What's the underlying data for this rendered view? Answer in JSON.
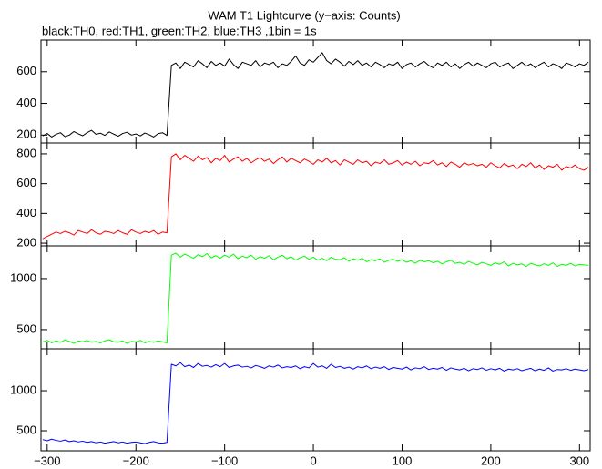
{
  "chart_data": [
    {
      "type": "line",
      "title": "WAM T1 Lightcurve (y−axis: Counts)",
      "subtitle": "black:TH0, red:TH1, green:TH2, blue:TH3 ,1bin = 1s",
      "color": "#000000",
      "x": [
        -305,
        -300,
        -295,
        -290,
        -285,
        -280,
        -275,
        -270,
        -265,
        -260,
        -255,
        -250,
        -245,
        -240,
        -235,
        -230,
        -225,
        -220,
        -215,
        -210,
        -205,
        -200,
        -195,
        -190,
        -185,
        -180,
        -175,
        -170,
        -165,
        -160,
        -155,
        -150,
        -145,
        -140,
        -135,
        -130,
        -125,
        -120,
        -115,
        -110,
        -105,
        -100,
        -95,
        -90,
        -85,
        -80,
        -75,
        -70,
        -65,
        -60,
        -55,
        -50,
        -45,
        -40,
        -35,
        -30,
        -25,
        -20,
        -15,
        -10,
        -5,
        0,
        5,
        10,
        15,
        20,
        25,
        30,
        35,
        40,
        45,
        50,
        55,
        60,
        65,
        70,
        75,
        80,
        85,
        90,
        95,
        100,
        105,
        110,
        115,
        120,
        125,
        130,
        135,
        140,
        145,
        150,
        155,
        160,
        165,
        170,
        175,
        180,
        185,
        190,
        195,
        200,
        205,
        210,
        215,
        220,
        225,
        230,
        235,
        240,
        245,
        250,
        255,
        260,
        265,
        270,
        275,
        280,
        285,
        290,
        295,
        300,
        305,
        310
      ],
      "values": [
        195,
        210,
        188,
        205,
        215,
        190,
        200,
        222,
        208,
        196,
        215,
        230,
        205,
        212,
        198,
        220,
        206,
        193,
        210,
        218,
        200,
        207,
        195,
        213,
        202,
        188,
        209,
        215,
        198,
        640,
        655,
        620,
        660,
        645,
        630,
        670,
        650,
        625,
        665,
        640,
        655,
        635,
        680,
        645,
        620,
        660,
        650,
        640,
        670,
        630,
        655,
        645,
        660,
        625,
        650,
        640,
        665,
        700,
        655,
        640,
        675,
        660,
        690,
        720,
        670,
        650,
        680,
        660,
        635,
        665,
        645,
        670,
        640,
        655,
        630,
        660,
        645,
        625,
        650,
        640,
        660,
        620,
        645,
        655,
        630,
        650,
        665,
        640,
        625,
        655,
        640,
        660,
        630,
        650,
        620,
        645,
        660,
        635,
        655,
        640,
        625,
        650,
        660,
        630,
        645,
        655,
        620,
        640,
        660,
        635,
        650,
        625,
        645,
        660,
        630,
        650,
        640,
        620,
        655,
        645,
        630,
        650,
        640,
        660
      ],
      "xlim": [
        -307,
        312
      ],
      "ylim": [
        150,
        800
      ],
      "yticks": [
        200,
        400,
        600
      ],
      "xticks": [
        {
          "value": -300,
          "label": "−300"
        },
        {
          "value": -200,
          "label": "−200"
        },
        {
          "value": -100,
          "label": "−100"
        },
        0,
        100,
        200,
        300
      ]
    },
    {
      "type": "line",
      "color": "#ff0000",
      "x": [
        -305,
        -300,
        -295,
        -290,
        -285,
        -280,
        -275,
        -270,
        -265,
        -260,
        -255,
        -250,
        -245,
        -240,
        -235,
        -230,
        -225,
        -220,
        -215,
        -210,
        -205,
        -200,
        -195,
        -190,
        -185,
        -180,
        -175,
        -170,
        -165,
        -160,
        -155,
        -150,
        -145,
        -140,
        -135,
        -130,
        -125,
        -120,
        -115,
        -110,
        -105,
        -100,
        -95,
        -90,
        -85,
        -80,
        -75,
        -70,
        -65,
        -60,
        -55,
        -50,
        -45,
        -40,
        -35,
        -30,
        -25,
        -20,
        -15,
        -10,
        -5,
        0,
        5,
        10,
        15,
        20,
        25,
        30,
        35,
        40,
        45,
        50,
        55,
        60,
        65,
        70,
        75,
        80,
        85,
        90,
        95,
        100,
        105,
        110,
        115,
        120,
        125,
        130,
        135,
        140,
        145,
        150,
        155,
        160,
        165,
        170,
        175,
        180,
        185,
        190,
        195,
        200,
        205,
        210,
        215,
        220,
        225,
        230,
        235,
        240,
        245,
        250,
        255,
        260,
        265,
        270,
        275,
        280,
        285,
        290,
        295,
        300,
        305,
        310
      ],
      "values": [
        230,
        245,
        260,
        275,
        265,
        280,
        270,
        255,
        285,
        275,
        265,
        290,
        270,
        260,
        280,
        275,
        265,
        285,
        270,
        260,
        290,
        275,
        265,
        280,
        270,
        285,
        260,
        275,
        270,
        780,
        800,
        760,
        790,
        770,
        750,
        785,
        760,
        775,
        740,
        770,
        755,
        790,
        745,
        765,
        780,
        750,
        770,
        740,
        760,
        775,
        750,
        765,
        735,
        760,
        780,
        745,
        770,
        755,
        740,
        765,
        750,
        730,
        760,
        745,
        770,
        740,
        755,
        725,
        760,
        745,
        730,
        760,
        740,
        750,
        720,
        745,
        735,
        760,
        730,
        740,
        755,
        725,
        745,
        730,
        750,
        720,
        740,
        735,
        755,
        725,
        740,
        715,
        745,
        730,
        710,
        740,
        725,
        735,
        720,
        730,
        710,
        740,
        720,
        705,
        735,
        715,
        725,
        700,
        730,
        715,
        740,
        705,
        725,
        695,
        720,
        710,
        730,
        690,
        715,
        705,
        725,
        700,
        690,
        710
      ],
      "xlim": [
        -307,
        312
      ],
      "ylim": [
        182,
        873
      ],
      "yticks": [
        200,
        400,
        600,
        800
      ],
      "xticks": [
        {
          "value": -300,
          "label": "−300"
        },
        {
          "value": -200,
          "label": "−200"
        },
        {
          "value": -100,
          "label": "−100"
        },
        0,
        100,
        200,
        300
      ]
    },
    {
      "type": "line",
      "color": "#00ff00",
      "x": [
        -305,
        -300,
        -295,
        -290,
        -285,
        -280,
        -275,
        -270,
        -265,
        -260,
        -255,
        -250,
        -245,
        -240,
        -235,
        -230,
        -225,
        -220,
        -215,
        -210,
        -205,
        -200,
        -195,
        -190,
        -185,
        -180,
        -175,
        -170,
        -165,
        -160,
        -155,
        -150,
        -145,
        -140,
        -135,
        -130,
        -125,
        -120,
        -115,
        -110,
        -105,
        -100,
        -95,
        -90,
        -85,
        -80,
        -75,
        -70,
        -65,
        -60,
        -55,
        -50,
        -45,
        -40,
        -35,
        -30,
        -25,
        -20,
        -15,
        -10,
        -5,
        0,
        5,
        10,
        15,
        20,
        25,
        30,
        35,
        40,
        45,
        50,
        55,
        60,
        65,
        70,
        75,
        80,
        85,
        90,
        95,
        100,
        105,
        110,
        115,
        120,
        125,
        130,
        135,
        140,
        145,
        150,
        155,
        160,
        165,
        170,
        175,
        180,
        185,
        190,
        195,
        200,
        205,
        210,
        215,
        220,
        225,
        230,
        235,
        240,
        245,
        250,
        255,
        260,
        265,
        270,
        275,
        280,
        285,
        290,
        295,
        300,
        305,
        310
      ],
      "values": [
        380,
        395,
        370,
        390,
        375,
        400,
        385,
        365,
        390,
        380,
        395,
        375,
        385,
        370,
        390,
        400,
        380,
        375,
        390,
        365,
        385,
        380,
        395,
        370,
        385,
        375,
        390,
        380,
        370,
        1230,
        1250,
        1210,
        1240,
        1220,
        1200,
        1235,
        1215,
        1245,
        1205,
        1225,
        1200,
        1230,
        1210,
        1240,
        1195,
        1220,
        1205,
        1230,
        1190,
        1215,
        1200,
        1225,
        1185,
        1210,
        1230,
        1195,
        1215,
        1180,
        1205,
        1220,
        1190,
        1210,
        1180,
        1200,
        1175,
        1210,
        1190,
        1185,
        1205,
        1170,
        1195,
        1180,
        1200,
        1165,
        1185,
        1175,
        1195,
        1160,
        1180,
        1190,
        1170,
        1185,
        1160,
        1175,
        1150,
        1180,
        1165,
        1175,
        1155,
        1170,
        1145,
        1165,
        1180,
        1150,
        1160,
        1140,
        1170,
        1150,
        1135,
        1160,
        1145,
        1130,
        1155,
        1140,
        1165,
        1125,
        1150,
        1135,
        1145,
        1120,
        1150,
        1135,
        1125,
        1145,
        1130,
        1155,
        1120,
        1140,
        1130,
        1150,
        1125,
        1140,
        1135,
        1130
      ],
      "xlim": [
        -307,
        312
      ],
      "ylim": [
        312,
        1321
      ],
      "yticks": [
        500,
        1000
      ],
      "xticks": [
        {
          "value": -300,
          "label": "−300"
        },
        {
          "value": -200,
          "label": "−200"
        },
        {
          "value": -100,
          "label": "−100"
        },
        0,
        100,
        200,
        300
      ]
    },
    {
      "type": "line",
      "color": "#0000ff",
      "x": [
        -305,
        -300,
        -295,
        -290,
        -285,
        -280,
        -275,
        -270,
        -265,
        -260,
        -255,
        -250,
        -245,
        -240,
        -235,
        -230,
        -225,
        -220,
        -215,
        -210,
        -205,
        -200,
        -195,
        -190,
        -185,
        -180,
        -175,
        -170,
        -165,
        -160,
        -155,
        -150,
        -145,
        -140,
        -135,
        -130,
        -125,
        -120,
        -115,
        -110,
        -105,
        -100,
        -95,
        -90,
        -85,
        -80,
        -75,
        -70,
        -65,
        -60,
        -55,
        -50,
        -45,
        -40,
        -35,
        -30,
        -25,
        -20,
        -15,
        -10,
        -5,
        0,
        5,
        10,
        15,
        20,
        25,
        30,
        35,
        40,
        45,
        50,
        55,
        60,
        65,
        70,
        75,
        80,
        85,
        90,
        95,
        100,
        105,
        110,
        115,
        120,
        125,
        130,
        135,
        140,
        145,
        150,
        155,
        160,
        165,
        170,
        175,
        180,
        185,
        190,
        195,
        200,
        205,
        210,
        215,
        220,
        225,
        230,
        235,
        240,
        245,
        250,
        255,
        260,
        265,
        270,
        275,
        280,
        285,
        290,
        295,
        300,
        305,
        310
      ],
      "values": [
        390,
        375,
        395,
        380,
        370,
        385,
        365,
        375,
        360,
        370,
        355,
        365,
        350,
        360,
        345,
        355,
        365,
        350,
        360,
        345,
        355,
        360,
        350,
        340,
        355,
        365,
        350,
        345,
        355,
        1330,
        1310,
        1350,
        1300,
        1320,
        1290,
        1340,
        1305,
        1315,
        1295,
        1325,
        1300,
        1340,
        1290,
        1310,
        1320,
        1295,
        1305,
        1285,
        1315,
        1300,
        1280,
        1310,
        1295,
        1320,
        1285,
        1300,
        1290,
        1310,
        1275,
        1300,
        1285,
        1340,
        1295,
        1310,
        1280,
        1330,
        1290,
        1305,
        1280,
        1295,
        1270,
        1300,
        1285,
        1310,
        1275,
        1295,
        1280,
        1300,
        1265,
        1290,
        1280,
        1270,
        1295,
        1260,
        1285,
        1275,
        1300,
        1265,
        1280,
        1270,
        1290,
        1255,
        1285,
        1270,
        1260,
        1280,
        1250,
        1275,
        1265,
        1285,
        1255,
        1275,
        1260,
        1280,
        1245,
        1270,
        1260,
        1275,
        1250,
        1265,
        1280,
        1250,
        1270,
        1255,
        1285,
        1245,
        1265,
        1260,
        1275,
        1255,
        1270,
        1260,
        1250,
        1265
      ],
      "xlim": [
        -307,
        312
      ],
      "ylim": [
        250,
        1523
      ],
      "yticks": [
        500,
        1000
      ],
      "xticks": [
        {
          "value": -300,
          "label": "−300"
        },
        {
          "value": -200,
          "label": "−200"
        },
        {
          "value": -100,
          "label": "−100"
        },
        0,
        100,
        200,
        300
      ]
    }
  ]
}
